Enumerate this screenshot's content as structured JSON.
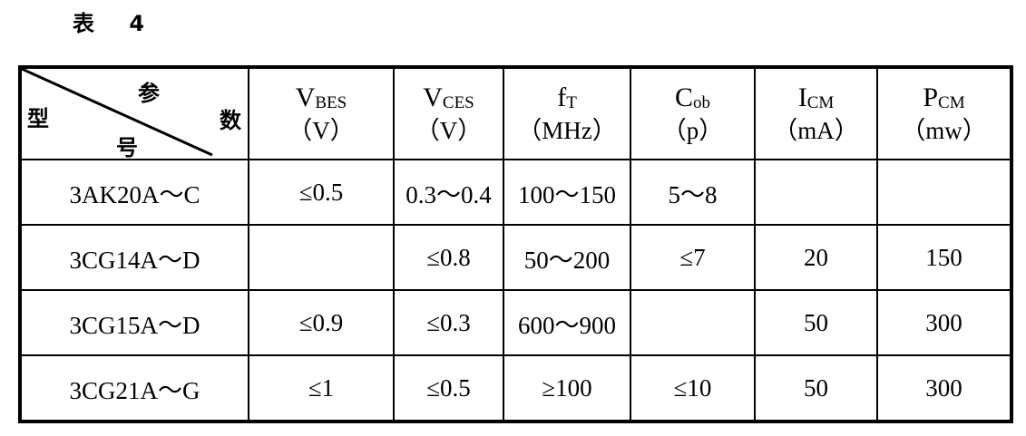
{
  "title": "表 4",
  "table": {
    "corner": {
      "top": "参",
      "right": "数",
      "left": "型",
      "bottom": "号"
    },
    "columns": [
      {
        "symbol": "V",
        "subscript": "BES",
        "unit": "（V）"
      },
      {
        "symbol": "V",
        "subscript": "CES",
        "unit": "（V）"
      },
      {
        "symbol": "f",
        "subscript": "T",
        "unit": "（MHz）"
      },
      {
        "symbol": "C",
        "subscript": "ob",
        "unit": "（p）"
      },
      {
        "symbol": "I",
        "subscript": "CM",
        "unit": "（mA）"
      },
      {
        "symbol": "P",
        "subscript": "CM",
        "unit": "（mw）"
      }
    ],
    "rows": [
      [
        "3AK20A～C",
        "≤0.5",
        "0.3～0.4",
        "100～150",
        "5～8",
        null,
        null
      ],
      [
        "3CG14A～D",
        null,
        "≤0.8",
        "50～200",
        "≤7",
        "20",
        "150"
      ],
      [
        "3CG15A～D",
        "≤0.9",
        "≤0.3",
        "600～900",
        null,
        "50",
        "300"
      ],
      [
        "3CG21A～G",
        "≤1",
        "≤0.5",
        "≥100",
        "≤10",
        "50",
        "300"
      ]
    ]
  }
}
